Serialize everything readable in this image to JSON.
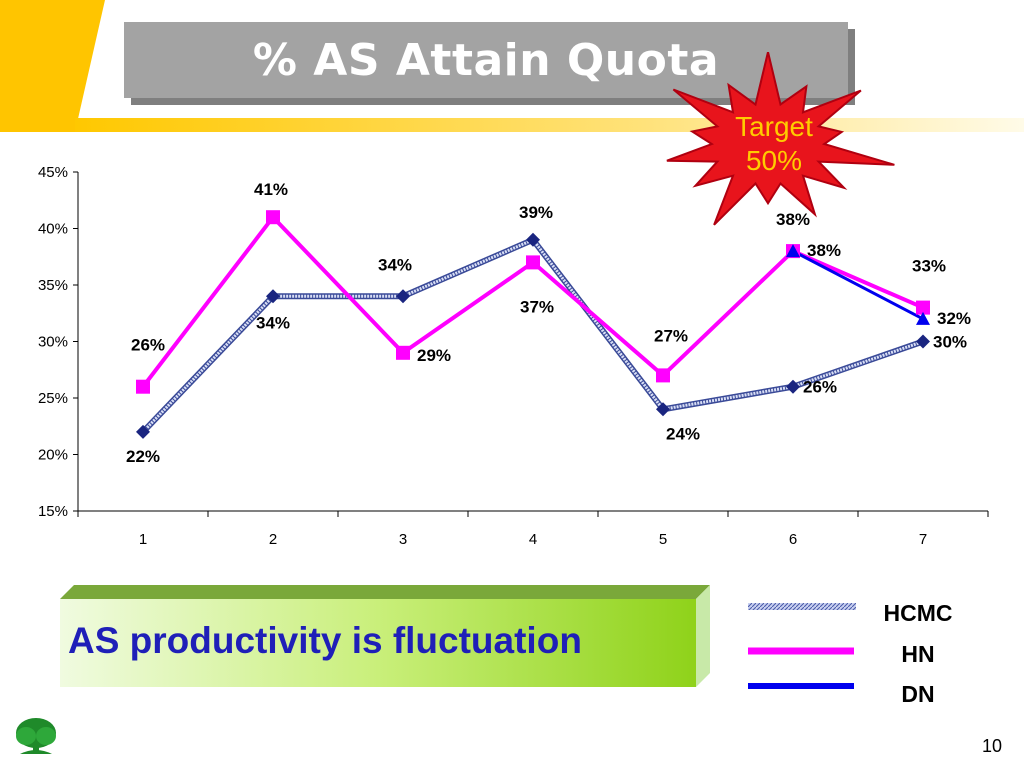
{
  "slide": {
    "title": "% AS Attain Quota",
    "target": {
      "line1": "Target",
      "line2": "50%"
    },
    "banner_text": "AS productivity is fluctuation",
    "page_number": "10"
  },
  "colors": {
    "hcmc": "#1a2580",
    "hn": "#ff00ff",
    "dn": "#0000ee",
    "banner_text": "#1f1fb8",
    "title_bg": "#a3a3a3",
    "burst": "#e8141c",
    "target_text": "#ffcc00"
  },
  "chart_data": {
    "type": "line",
    "title": "",
    "xlabel": "",
    "ylabel": "",
    "categories": [
      "1",
      "2",
      "3",
      "4",
      "5",
      "6",
      "7"
    ],
    "ylim": [
      0.15,
      0.45
    ],
    "yticks": [
      0.15,
      0.2,
      0.25,
      0.3,
      0.35,
      0.4,
      0.45
    ],
    "ytick_labels": [
      "15%",
      "20%",
      "25%",
      "30%",
      "35%",
      "40%",
      "45%"
    ],
    "grid": false,
    "legend_position": "bottom-right",
    "series": [
      {
        "name": "HCMC",
        "values": [
          0.22,
          0.34,
          0.34,
          0.39,
          0.24,
          0.26,
          0.3
        ],
        "labels": [
          "22%",
          "34%",
          "34%",
          "39%",
          "24%",
          "26%",
          "30%"
        ]
      },
      {
        "name": "HN",
        "values": [
          0.26,
          0.41,
          0.29,
          0.37,
          0.27,
          0.38,
          0.33
        ],
        "labels": [
          "26%",
          "41%",
          "29%",
          "37%",
          "27%",
          "38%",
          "33%"
        ]
      },
      {
        "name": "DN",
        "values": [
          null,
          null,
          null,
          null,
          null,
          0.38,
          0.32
        ],
        "labels": [
          "",
          "",
          "",
          "",
          "",
          "38%",
          "32%"
        ]
      }
    ]
  }
}
